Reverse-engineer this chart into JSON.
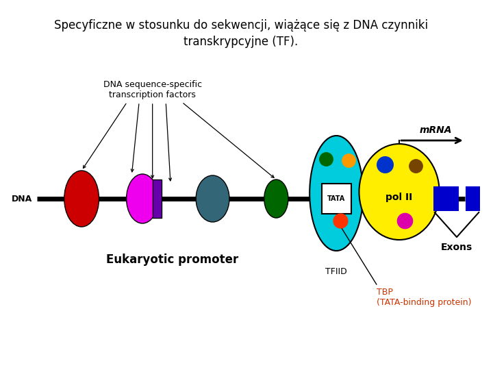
{
  "title_line1": "Specyficzne w stosunku do sekwencji, wiążące się z DNA czynniki",
  "title_line2": "transkrypcyjne (TF).",
  "title_fontsize": 12,
  "bg_color": "#ffffff",
  "dna_label": "DNA",
  "mrna_label": "mRNA",
  "tfiid_label": "TFIID",
  "tbp_label": "TBP\n(TATA-binding protein)",
  "euk_label": "Eukaryotic promoter",
  "tf_label": "DNA sequence-specific\ntranscription factors",
  "exons_label": "Exons",
  "pol2_label": "pol II",
  "tata_label": "TATA"
}
